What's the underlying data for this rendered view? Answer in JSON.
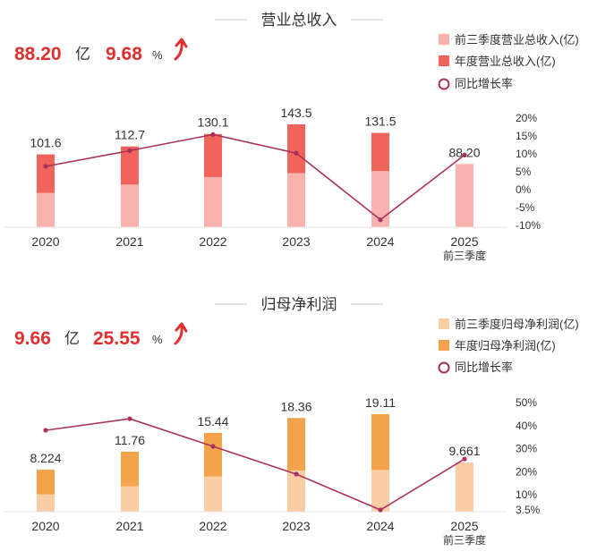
{
  "colors": {
    "revenue_q3": "#f8b3ae",
    "revenue_full": "#f0645c",
    "profit_q3": "#fbcda4",
    "profit_full": "#f4a24c",
    "growth_line": "#a8325b",
    "highlight": "#e02f2f"
  },
  "chart_data": [
    {
      "type": "bar",
      "title": "营业总收入",
      "headline": {
        "value": "88.20",
        "unit": "亿",
        "growth": "9.68",
        "growth_unit": "%"
      },
      "categories": [
        "2020",
        "2021",
        "2022",
        "2023",
        "2024",
        "2025"
      ],
      "category_sublabel": "前三季度",
      "series": [
        {
          "name": "前三季度营业总收入(亿)",
          "values": [
            48.0,
            59.5,
            70.0,
            75.5,
            78.5,
            88.2
          ]
        },
        {
          "name": "年度营业总收入(亿)",
          "values": [
            101.6,
            112.7,
            130.1,
            143.5,
            131.5,
            null
          ]
        },
        {
          "name": "同比增长率",
          "values": [
            6.5,
            10.9,
            15.4,
            10.2,
            -8.4,
            9.68
          ]
        }
      ],
      "value_labels": [
        "101.6",
        "112.7",
        "130.1",
        "143.5",
        "131.5",
        "88.20"
      ],
      "y2_ticks": [
        "20%",
        "15%",
        "10%",
        "5%",
        "0%",
        "-5%",
        "-10%"
      ],
      "y2lim": [
        -10,
        20
      ]
    },
    {
      "type": "bar",
      "title": "归母净利润",
      "headline": {
        "value": "9.66",
        "unit": "亿",
        "growth": "25.55",
        "growth_unit": "%"
      },
      "categories": [
        "2020",
        "2021",
        "2022",
        "2023",
        "2024",
        "2025"
      ],
      "category_sublabel": "前三季度",
      "series": [
        {
          "name": "前三季度归母净利润(亿)",
          "values": [
            3.4,
            5.0,
            6.9,
            8.1,
            8.2,
            9.661
          ]
        },
        {
          "name": "年度归母净利润(亿)",
          "values": [
            8.224,
            11.76,
            15.44,
            18.36,
            19.11,
            null
          ]
        },
        {
          "name": "同比增长率",
          "values": [
            38.0,
            43.0,
            31.0,
            19.0,
            3.5,
            25.55
          ]
        }
      ],
      "value_labels": [
        "8.224",
        "11.76",
        "15.44",
        "18.36",
        "19.11",
        "9.661"
      ],
      "y2_ticks": [
        "50%",
        "40%",
        "30%",
        "20%",
        "10%",
        "3.5%"
      ],
      "y2_tick_values": [
        50,
        40,
        30,
        20,
        10,
        3.5
      ],
      "y2lim": [
        3.5,
        50
      ]
    }
  ]
}
